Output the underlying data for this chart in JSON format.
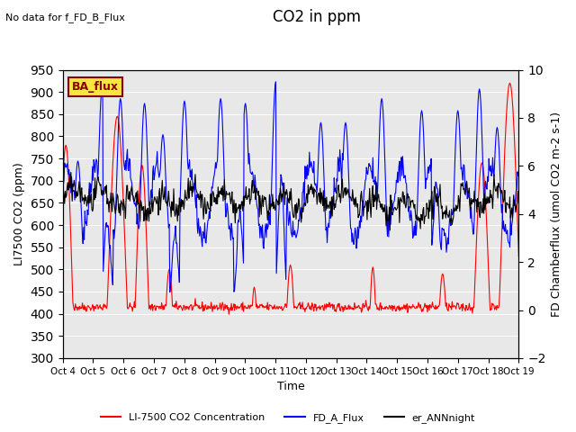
{
  "title": "CO2 in ppm",
  "no_data_text": "No data for f_FD_B_Flux",
  "ba_flux_label": "BA_flux",
  "xlabel": "Time",
  "ylabel_left": "LI7500 CO2 (ppm)",
  "ylabel_right": "FD Chamberflux (umol CO2 m-2 s-1)",
  "ylim_left": [
    300,
    950
  ],
  "ylim_right": [
    -2,
    10
  ],
  "yticks_left": [
    300,
    350,
    400,
    450,
    500,
    550,
    600,
    650,
    700,
    750,
    800,
    850,
    900,
    950
  ],
  "yticks_right": [
    -2,
    0,
    2,
    4,
    6,
    8,
    10
  ],
  "xtick_labels": [
    "Oct 4",
    "Oct 5",
    "Oct 6",
    "Oct 7",
    "Oct 8",
    "Oct 9",
    "Oct 10",
    "Oct 11",
    "Oct 12",
    "Oct 13",
    "Oct 14",
    "Oct 15",
    "Oct 16",
    "Oct 17",
    "Oct 18",
    "Oct 19"
  ],
  "legend_labels": [
    "LI-7500 CO2 Concentration",
    "FD_A_Flux",
    "er_ANNnight"
  ],
  "bg_color": "#e8e8e8",
  "fig_color": "white"
}
